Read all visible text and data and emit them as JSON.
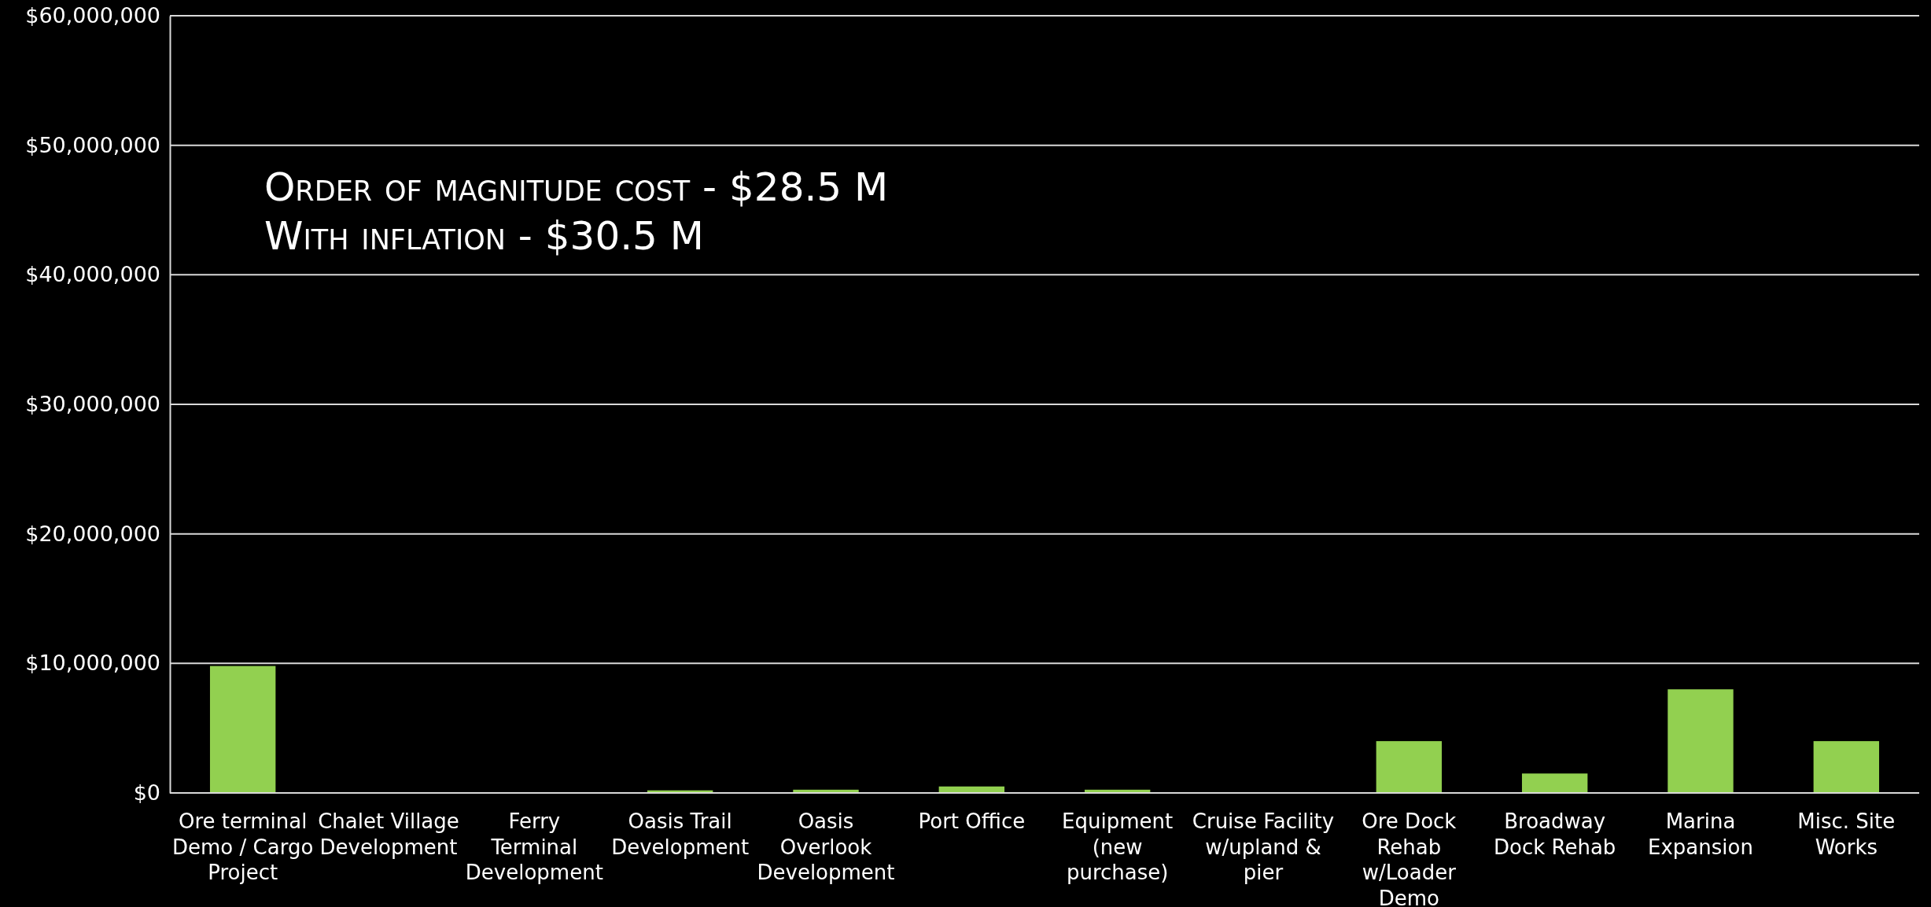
{
  "chart_data": {
    "type": "bar",
    "categories": [
      "Ore terminal Demo / Cargo Project",
      "Chalet Village Development",
      "Ferry Terminal Development",
      "Oasis Trail Development",
      "Oasis Overlook Development",
      "Port Office",
      "Equipment (new purchase)",
      "Cruise Facility w/upland & pier",
      "Ore Dock Rehab w/Loader Demo",
      "Broadway Dock Rehab",
      "Marina Expansion",
      "Misc. Site Works"
    ],
    "values": [
      9800000,
      0,
      0,
      200000,
      250000,
      500000,
      250000,
      0,
      4000000,
      1500000,
      8000000,
      4000000
    ],
    "color": "#92d050",
    "ylim": [
      0,
      60000000
    ],
    "yticks": [
      {
        "value": 0,
        "label": "$0"
      },
      {
        "value": 10000000,
        "label": "$10,000,000"
      },
      {
        "value": 20000000,
        "label": "$20,000,000"
      },
      {
        "value": 30000000,
        "label": "$30,000,000"
      },
      {
        "value": 40000000,
        "label": "$40,000,000"
      },
      {
        "value": 50000000,
        "label": "$50,000,000"
      },
      {
        "value": 60000000,
        "label": "$60,000,000"
      }
    ],
    "grid": "y",
    "annotations": [
      "Order of magnitude cost - $28.5 M",
      "With inflation - $30.5 M"
    ]
  }
}
